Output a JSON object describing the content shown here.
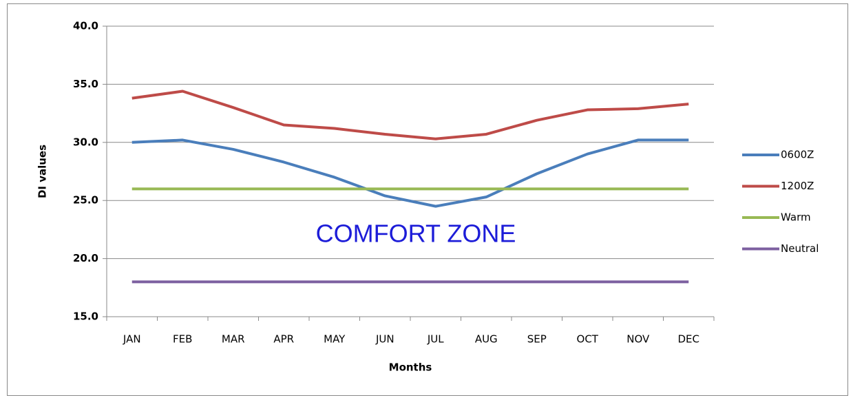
{
  "chart_data": {
    "type": "line",
    "categories": [
      "JAN",
      "FEB",
      "MAR",
      "APR",
      "MAY",
      "JUN",
      "JUL",
      "AUG",
      "SEP",
      "OCT",
      "NOV",
      "DEC"
    ],
    "series": [
      {
        "name": "0600Z",
        "color": "#4a7ebb",
        "values": [
          30.0,
          30.2,
          29.4,
          28.3,
          27.0,
          25.4,
          24.5,
          25.3,
          27.3,
          29.0,
          30.2,
          30.2
        ]
      },
      {
        "name": "1200Z",
        "color": "#be4b48",
        "values": [
          33.8,
          34.4,
          33.0,
          31.5,
          31.2,
          30.7,
          30.3,
          30.7,
          31.9,
          32.8,
          32.9,
          33.3
        ]
      },
      {
        "name": "Warm",
        "color": "#98b954",
        "values": [
          26,
          26,
          26,
          26,
          26,
          26,
          26,
          26,
          26,
          26,
          26,
          26
        ]
      },
      {
        "name": "Neutral",
        "color": "#7d60a0",
        "values": [
          18,
          18,
          18,
          18,
          18,
          18,
          18,
          18,
          18,
          18,
          18,
          18
        ]
      }
    ],
    "ylim": [
      15,
      40
    ],
    "yticks": [
      {
        "value": 15,
        "label": "15.0"
      },
      {
        "value": 20,
        "label": "20.0"
      },
      {
        "value": 25,
        "label": "25.0"
      },
      {
        "value": 30,
        "label": "30.0"
      },
      {
        "value": 35,
        "label": "35.0"
      },
      {
        "value": 40,
        "label": "40.0"
      }
    ],
    "grid": true,
    "y_label": "DI values",
    "x_label": "Months",
    "annotation": "COMFORT ZONE",
    "legend": "right"
  }
}
